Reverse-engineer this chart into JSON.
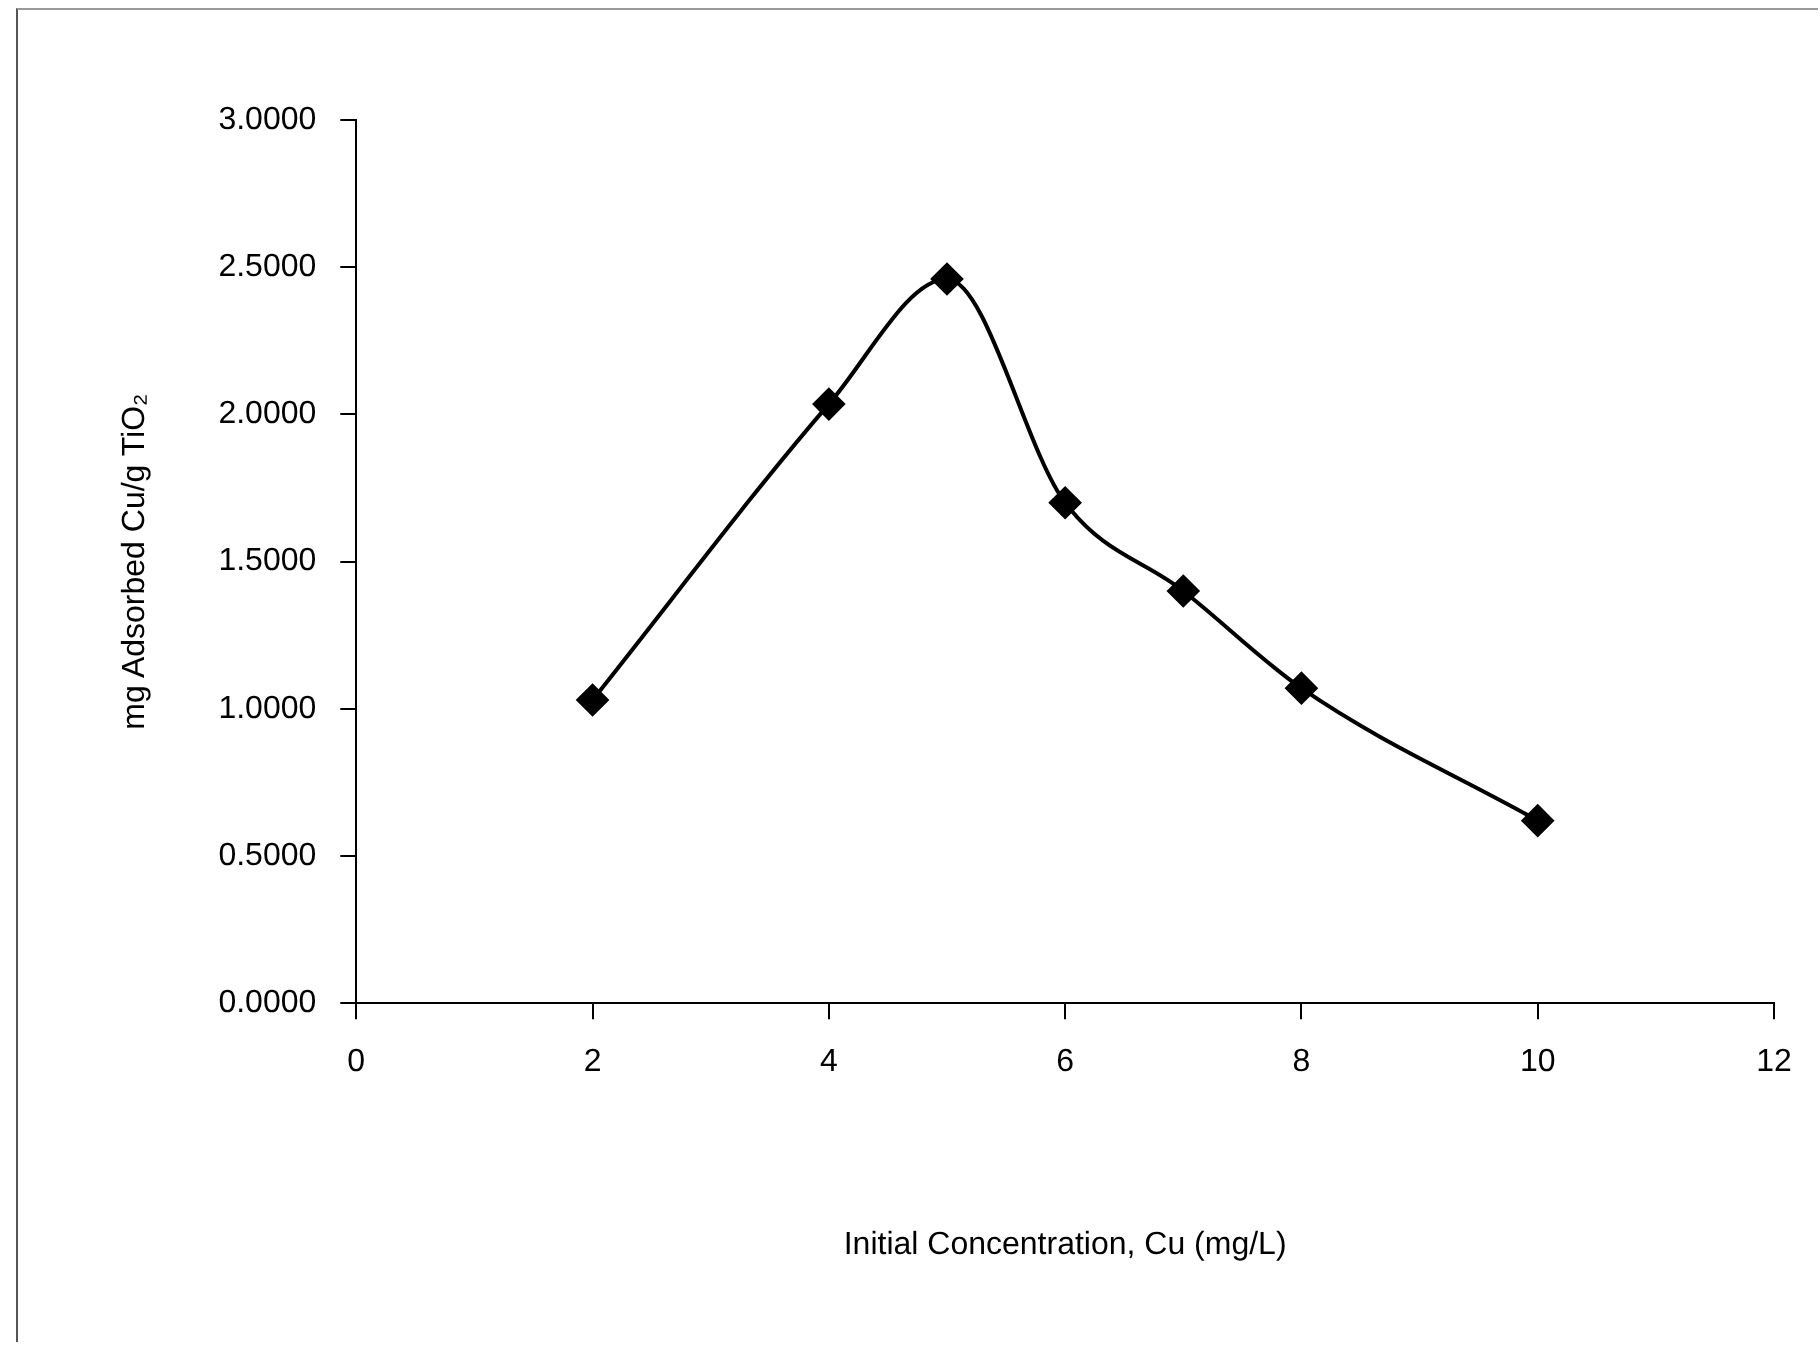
{
  "chart_data": {
    "type": "line",
    "xlabel": "Initial Concentration, Cu (mg/L)",
    "ylabel": "mg Adsorbed Cu/g TiO₂",
    "x": [
      2,
      4,
      5,
      6,
      7,
      8,
      10
    ],
    "series": [
      {
        "color": "#000000",
        "values": [
          1.03,
          2.035,
          2.46,
          1.7,
          1.4,
          1.07,
          0.62
        ]
      }
    ],
    "xlim": [
      0,
      12
    ],
    "xticks": [
      0,
      2,
      4,
      6,
      8,
      10,
      12
    ],
    "ylim": [
      0,
      3
    ],
    "yticks": [
      {
        "value": 0,
        "label": "0.0000"
      },
      {
        "value": 0.5,
        "label": "0.5000"
      },
      {
        "value": 1,
        "label": "1.0000"
      },
      {
        "value": 1.5,
        "label": "1.5000"
      },
      {
        "value": 2,
        "label": "2.0000"
      },
      {
        "value": 2.5,
        "label": "2.5000"
      },
      {
        "value": 3,
        "label": "3.0000"
      }
    ],
    "grid": false,
    "legend": false,
    "marker": "diamond",
    "line_style": "solid"
  }
}
